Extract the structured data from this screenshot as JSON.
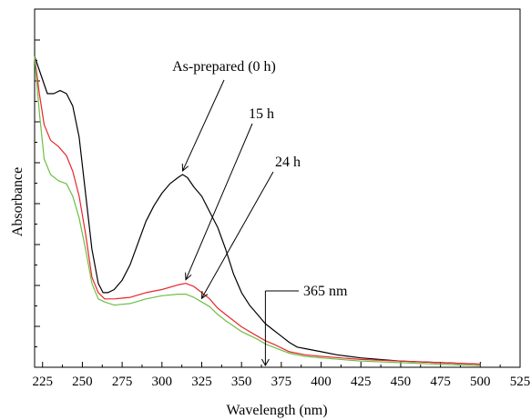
{
  "chart_data": {
    "type": "line",
    "title": "",
    "xlabel": "Wavelength (nm)",
    "ylabel": "Absorbance",
    "xlim": [
      220,
      525
    ],
    "ylim": [
      0,
      1
    ],
    "x_ticks": [
      "225",
      "250",
      "275",
      "300",
      "325",
      "350",
      "375",
      "400",
      "425",
      "450",
      "475",
      "500",
      "525"
    ],
    "y_tick_labels_shown": false,
    "grid": false,
    "legend": "none",
    "series": [
      {
        "name": "As-prepared (0 h)",
        "color": "#000000",
        "points": [
          [
            220,
            1.0
          ],
          [
            224,
            0.94
          ],
          [
            228,
            0.88
          ],
          [
            232,
            0.88
          ],
          [
            236,
            0.89
          ],
          [
            240,
            0.88
          ],
          [
            244,
            0.84
          ],
          [
            248,
            0.74
          ],
          [
            252,
            0.56
          ],
          [
            256,
            0.38
          ],
          [
            260,
            0.27
          ],
          [
            263,
            0.24
          ],
          [
            266,
            0.24
          ],
          [
            270,
            0.25
          ],
          [
            275,
            0.28
          ],
          [
            280,
            0.33
          ],
          [
            285,
            0.4
          ],
          [
            290,
            0.47
          ],
          [
            295,
            0.52
          ],
          [
            300,
            0.56
          ],
          [
            305,
            0.59
          ],
          [
            310,
            0.61
          ],
          [
            313,
            0.62
          ],
          [
            316,
            0.61
          ],
          [
            320,
            0.58
          ],
          [
            325,
            0.55
          ],
          [
            330,
            0.5
          ],
          [
            335,
            0.45
          ],
          [
            340,
            0.38
          ],
          [
            345,
            0.3
          ],
          [
            350,
            0.24
          ],
          [
            355,
            0.2
          ],
          [
            360,
            0.17
          ],
          [
            365,
            0.14
          ],
          [
            370,
            0.12
          ],
          [
            375,
            0.1
          ],
          [
            380,
            0.08
          ],
          [
            385,
            0.065
          ],
          [
            390,
            0.06
          ],
          [
            400,
            0.05
          ],
          [
            410,
            0.04
          ],
          [
            425,
            0.03
          ],
          [
            450,
            0.02
          ],
          [
            475,
            0.015
          ],
          [
            500,
            0.01
          ]
        ]
      },
      {
        "name": "15 h",
        "color": "#e8262c",
        "points": [
          [
            220,
            1.0
          ],
          [
            223,
            0.88
          ],
          [
            226,
            0.78
          ],
          [
            230,
            0.73
          ],
          [
            235,
            0.71
          ],
          [
            240,
            0.68
          ],
          [
            244,
            0.63
          ],
          [
            248,
            0.55
          ],
          [
            252,
            0.43
          ],
          [
            256,
            0.29
          ],
          [
            260,
            0.24
          ],
          [
            264,
            0.22
          ],
          [
            270,
            0.22
          ],
          [
            280,
            0.225
          ],
          [
            290,
            0.24
          ],
          [
            300,
            0.25
          ],
          [
            310,
            0.265
          ],
          [
            315,
            0.27
          ],
          [
            320,
            0.26
          ],
          [
            325,
            0.24
          ],
          [
            330,
            0.22
          ],
          [
            335,
            0.19
          ],
          [
            340,
            0.17
          ],
          [
            350,
            0.13
          ],
          [
            360,
            0.1
          ],
          [
            365,
            0.085
          ],
          [
            370,
            0.075
          ],
          [
            380,
            0.05
          ],
          [
            390,
            0.04
          ],
          [
            400,
            0.035
          ],
          [
            425,
            0.025
          ],
          [
            450,
            0.02
          ],
          [
            475,
            0.015
          ],
          [
            500,
            0.01
          ]
        ]
      },
      {
        "name": "24 h",
        "color": "#6cbf45",
        "points": [
          [
            220,
            1.0
          ],
          [
            223,
            0.82
          ],
          [
            226,
            0.67
          ],
          [
            230,
            0.62
          ],
          [
            235,
            0.6
          ],
          [
            240,
            0.59
          ],
          [
            244,
            0.55
          ],
          [
            248,
            0.48
          ],
          [
            252,
            0.38
          ],
          [
            256,
            0.27
          ],
          [
            260,
            0.22
          ],
          [
            264,
            0.21
          ],
          [
            270,
            0.2
          ],
          [
            280,
            0.205
          ],
          [
            290,
            0.22
          ],
          [
            300,
            0.23
          ],
          [
            310,
            0.235
          ],
          [
            315,
            0.235
          ],
          [
            320,
            0.225
          ],
          [
            325,
            0.21
          ],
          [
            330,
            0.195
          ],
          [
            335,
            0.17
          ],
          [
            340,
            0.15
          ],
          [
            350,
            0.115
          ],
          [
            360,
            0.09
          ],
          [
            365,
            0.075
          ],
          [
            370,
            0.065
          ],
          [
            380,
            0.045
          ],
          [
            390,
            0.035
          ],
          [
            400,
            0.03
          ],
          [
            425,
            0.02
          ],
          [
            450,
            0.015
          ],
          [
            475,
            0.01
          ],
          [
            500,
            0.005
          ]
        ]
      }
    ],
    "annotations": [
      {
        "text": "As-prepared (0 h)",
        "series": "As-prepared (0 h)",
        "x": 313,
        "y": 0.62
      },
      {
        "text": "15 h",
        "series": "15 h",
        "x": 315,
        "y": 0.27
      },
      {
        "text": "24 h",
        "series": "24 h",
        "x": 325,
        "y": 0.21
      },
      {
        "text": "365 nm",
        "x": 365,
        "y": 0.0
      }
    ]
  }
}
